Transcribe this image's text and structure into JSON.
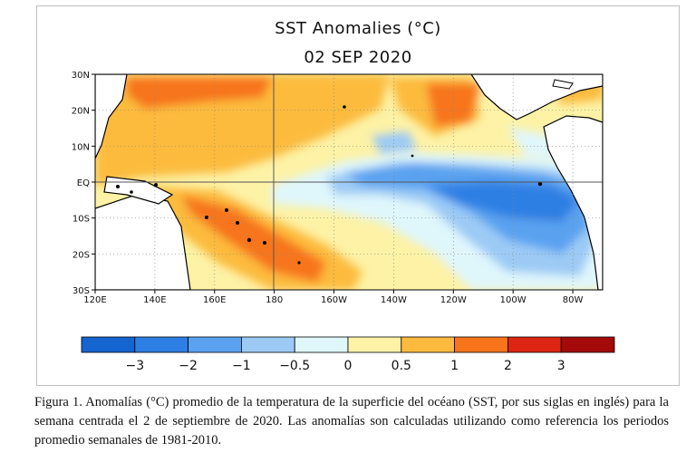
{
  "figure": {
    "title": "SST Anomalies (°C)",
    "date": "02 SEP 2020"
  },
  "map": {
    "lat_labels": [
      "30N",
      "20N",
      "10N",
      "EQ",
      "10S",
      "20S",
      "30S"
    ],
    "lon_labels": [
      "120E",
      "140E",
      "160E",
      "180",
      "160W",
      "140W",
      "120W",
      "100W",
      "80W"
    ],
    "lat_range": [
      -30,
      30
    ],
    "lon_range": [
      120,
      290
    ]
  },
  "colorbar": {
    "colors": [
      "#1565d0",
      "#2d7fe3",
      "#5aa2f0",
      "#9ccaf5",
      "#dff6fb",
      "#fdf2a6",
      "#fcbb3e",
      "#f7741a",
      "#dc2512",
      "#a40a0a"
    ],
    "tick_labels": [
      "−3",
      "−2",
      "−1",
      "−0.5",
      "0",
      "0.5",
      "1",
      "2",
      "3"
    ]
  },
  "caption": "Figura 1. Anomalías (°C) promedio de la temperatura de la superficie del océano (SST, por sus siglas en inglés) para la semana centrada el 2 de septiembre de 2020. Las anomalías son calculadas utilizando como referencia los periodos promedio semanales de 1981-2010."
}
